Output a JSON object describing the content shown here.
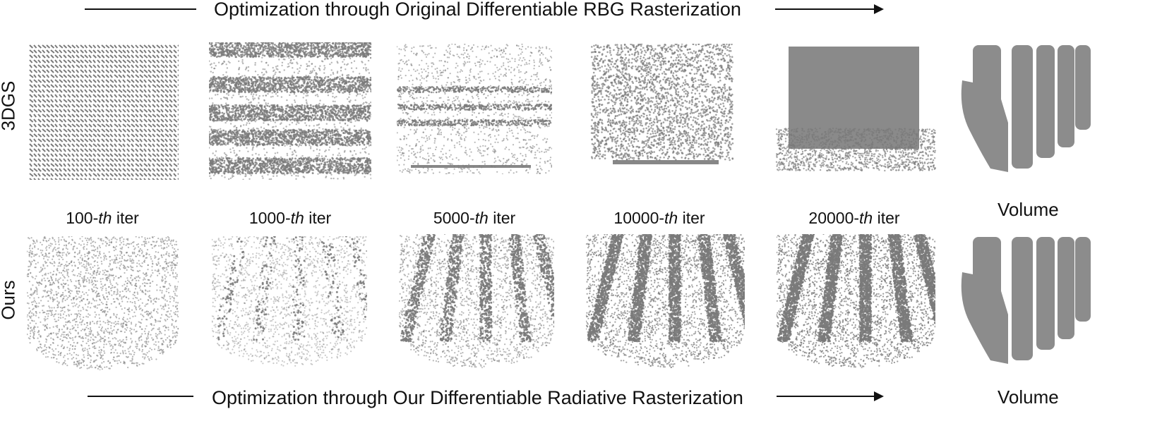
{
  "top_banner": {
    "text": "Optimization through Original Differentiable RBG Rasterization"
  },
  "bottom_banner": {
    "text": "Optimization through Our Differentiable Radiative Rasterization"
  },
  "rows": [
    {
      "label": "3DGS"
    },
    {
      "label": "Ours"
    }
  ],
  "columns": [
    {
      "num": "100-",
      "th": "th",
      "suffix": " iter"
    },
    {
      "num": "1000-",
      "th": "th",
      "suffix": " iter"
    },
    {
      "num": "5000-",
      "th": "th",
      "suffix": " iter"
    },
    {
      "num": "10000-",
      "th": "th",
      "suffix": " iter"
    },
    {
      "num": "20000-",
      "th": "th",
      "suffix": " iter"
    }
  ],
  "volume_label": "Volume",
  "volume_label_bottom": "Volume",
  "colors": {
    "points": "#7a7a7a",
    "bone": "#8c8c8c",
    "text": "#111111"
  }
}
